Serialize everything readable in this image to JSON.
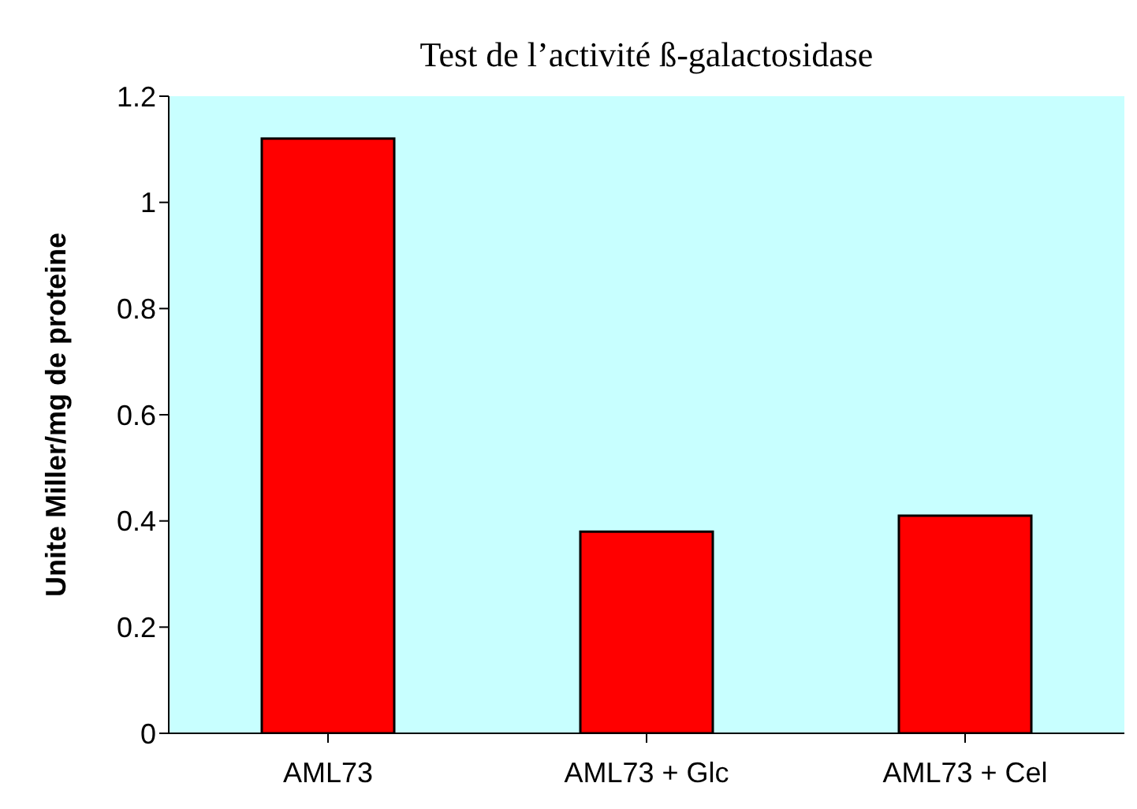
{
  "chart_data": {
    "type": "bar",
    "title": "Test de l’activité ß-galactosidase",
    "ylabel": "Unite Miller/mg de proteine",
    "categories": [
      "AML73",
      "AML73 + Glc",
      "AML73 + Cel"
    ],
    "values": [
      1.12,
      0.38,
      0.41
    ],
    "color": "#ff0000",
    "ylim": [
      0,
      1.2
    ],
    "yticks": [
      0,
      0.2,
      0.4,
      0.6,
      0.8,
      1,
      1.2
    ]
  }
}
